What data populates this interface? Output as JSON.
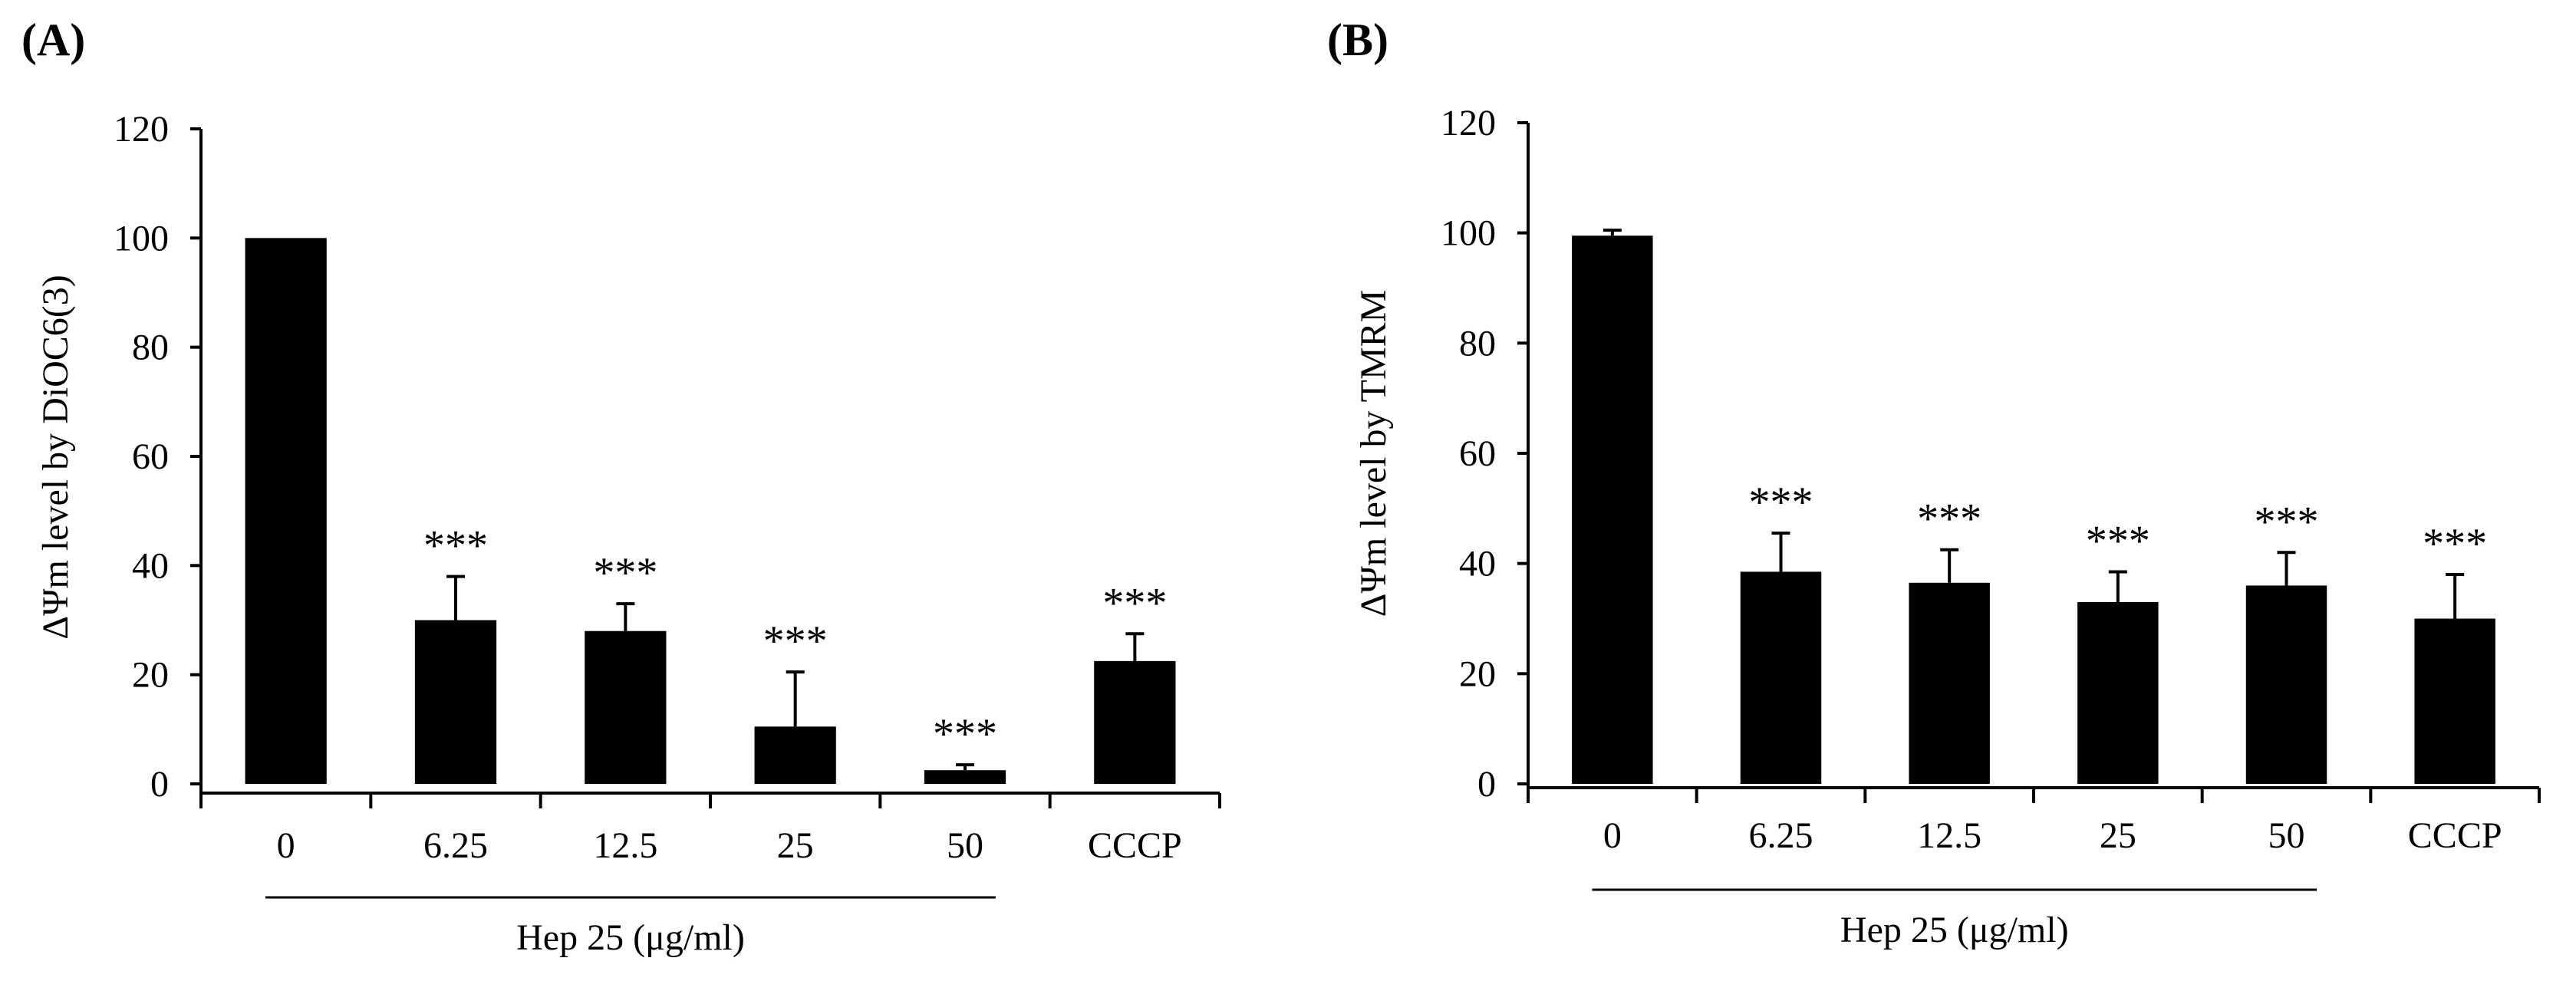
{
  "chart_data": [
    {
      "panel": "(A)",
      "type": "bar",
      "categories": [
        "0",
        "6.25",
        "12.5",
        "25",
        "50",
        "CCCP"
      ],
      "values": [
        100,
        30,
        28,
        10.5,
        2.5,
        22.5
      ],
      "errors": [
        0,
        8,
        5,
        10,
        1,
        5
      ],
      "significance": [
        "",
        "***",
        "***",
        "***",
        "***",
        "***"
      ],
      "ylabel": "ΔΨm level by DiOC6(3)",
      "xlabel": "",
      "ylim": [
        0,
        120
      ],
      "yticks": [
        "0",
        "20",
        "40",
        "60",
        "80",
        "100",
        "120"
      ],
      "group_label": "Hep 25 (μg/ml)",
      "group_span": [
        "0",
        "50"
      ]
    },
    {
      "panel": "(B)",
      "type": "bar",
      "categories": [
        "0",
        "6.25",
        "12.5",
        "25",
        "50",
        "CCCP"
      ],
      "values": [
        99.5,
        38.5,
        36.5,
        33,
        36,
        30
      ],
      "errors": [
        1,
        7,
        6,
        5.5,
        6,
        8
      ],
      "significance": [
        "",
        "***",
        "***",
        "***",
        "***",
        "***"
      ],
      "ylabel": "ΔΨm level by TMRM",
      "xlabel": "",
      "ylim": [
        0,
        120
      ],
      "yticks": [
        "0",
        "20",
        "40",
        "60",
        "80",
        "100",
        "120"
      ],
      "group_label": "Hep 25 (μg/ml)",
      "group_span": [
        "0",
        "50"
      ]
    }
  ]
}
